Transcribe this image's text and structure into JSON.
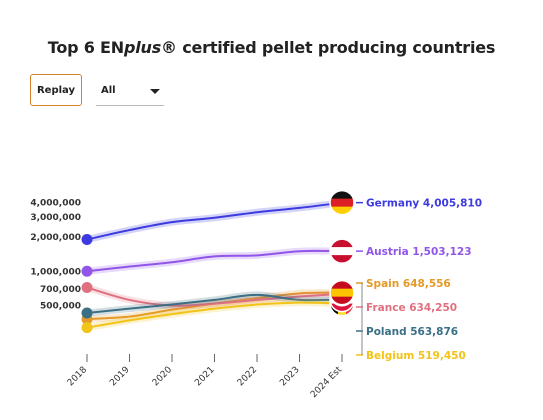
{
  "title_prefix": "Top 6 EN",
  "title_em": "plus",
  "title_suffix": "® certified pellet producing countries",
  "controls": {
    "replay_label": "Replay",
    "filter_value": "All"
  },
  "chart_data": {
    "type": "line",
    "title": "Top 6 ENplus® certified pellet producing countries",
    "categories": [
      "2018",
      "2019",
      "2020",
      "2021",
      "2022",
      "2023",
      "2024 Est"
    ],
    "y_ticks": [
      {
        "value": 4000000,
        "label": "4,000,000"
      },
      {
        "value": 3000000,
        "label": "3,000,000"
      },
      {
        "value": 2000000,
        "label": "2,000,000"
      },
      {
        "value": 1000000,
        "label": "1,000,000"
      },
      {
        "value": 700000,
        "label": "700,000"
      },
      {
        "value": 500000,
        "label": "500,000"
      }
    ],
    "y_scale": "log",
    "grid": false,
    "series": [
      {
        "name": "Germany",
        "color": "#3d3be0",
        "end_label": "4,005,810",
        "flag": "germany-flag",
        "values": [
          1900000,
          2300000,
          2700000,
          2950000,
          3300000,
          3600000,
          4005810
        ]
      },
      {
        "name": "Austria",
        "color": "#9155e8",
        "end_label": "1,503,123",
        "flag": "austria-flag",
        "values": [
          1000000,
          1100000,
          1200000,
          1350000,
          1380000,
          1500000,
          1503123
        ]
      },
      {
        "name": "Spain",
        "color": "#e39a28",
        "end_label": "648,556",
        "flag": "spain-flag",
        "values": [
          380000,
          400000,
          460000,
          520000,
          580000,
          640000,
          648556
        ]
      },
      {
        "name": "France",
        "color": "#e0707f",
        "end_label": "634,250",
        "flag": "france-flag",
        "values": [
          720000,
          560000,
          500000,
          520000,
          560000,
          600000,
          634250
        ]
      },
      {
        "name": "Poland",
        "color": "#3a6f86",
        "end_label": "563,876",
        "flag": "poland-flag",
        "values": [
          430000,
          470000,
          510000,
          560000,
          620000,
          560000,
          563876
        ]
      },
      {
        "name": "Belgium",
        "color": "#f2c318",
        "end_label": "519,450",
        "flag": "belgium-flag",
        "values": [
          320000,
          370000,
          420000,
          470000,
          510000,
          530000,
          519450
        ]
      }
    ]
  }
}
